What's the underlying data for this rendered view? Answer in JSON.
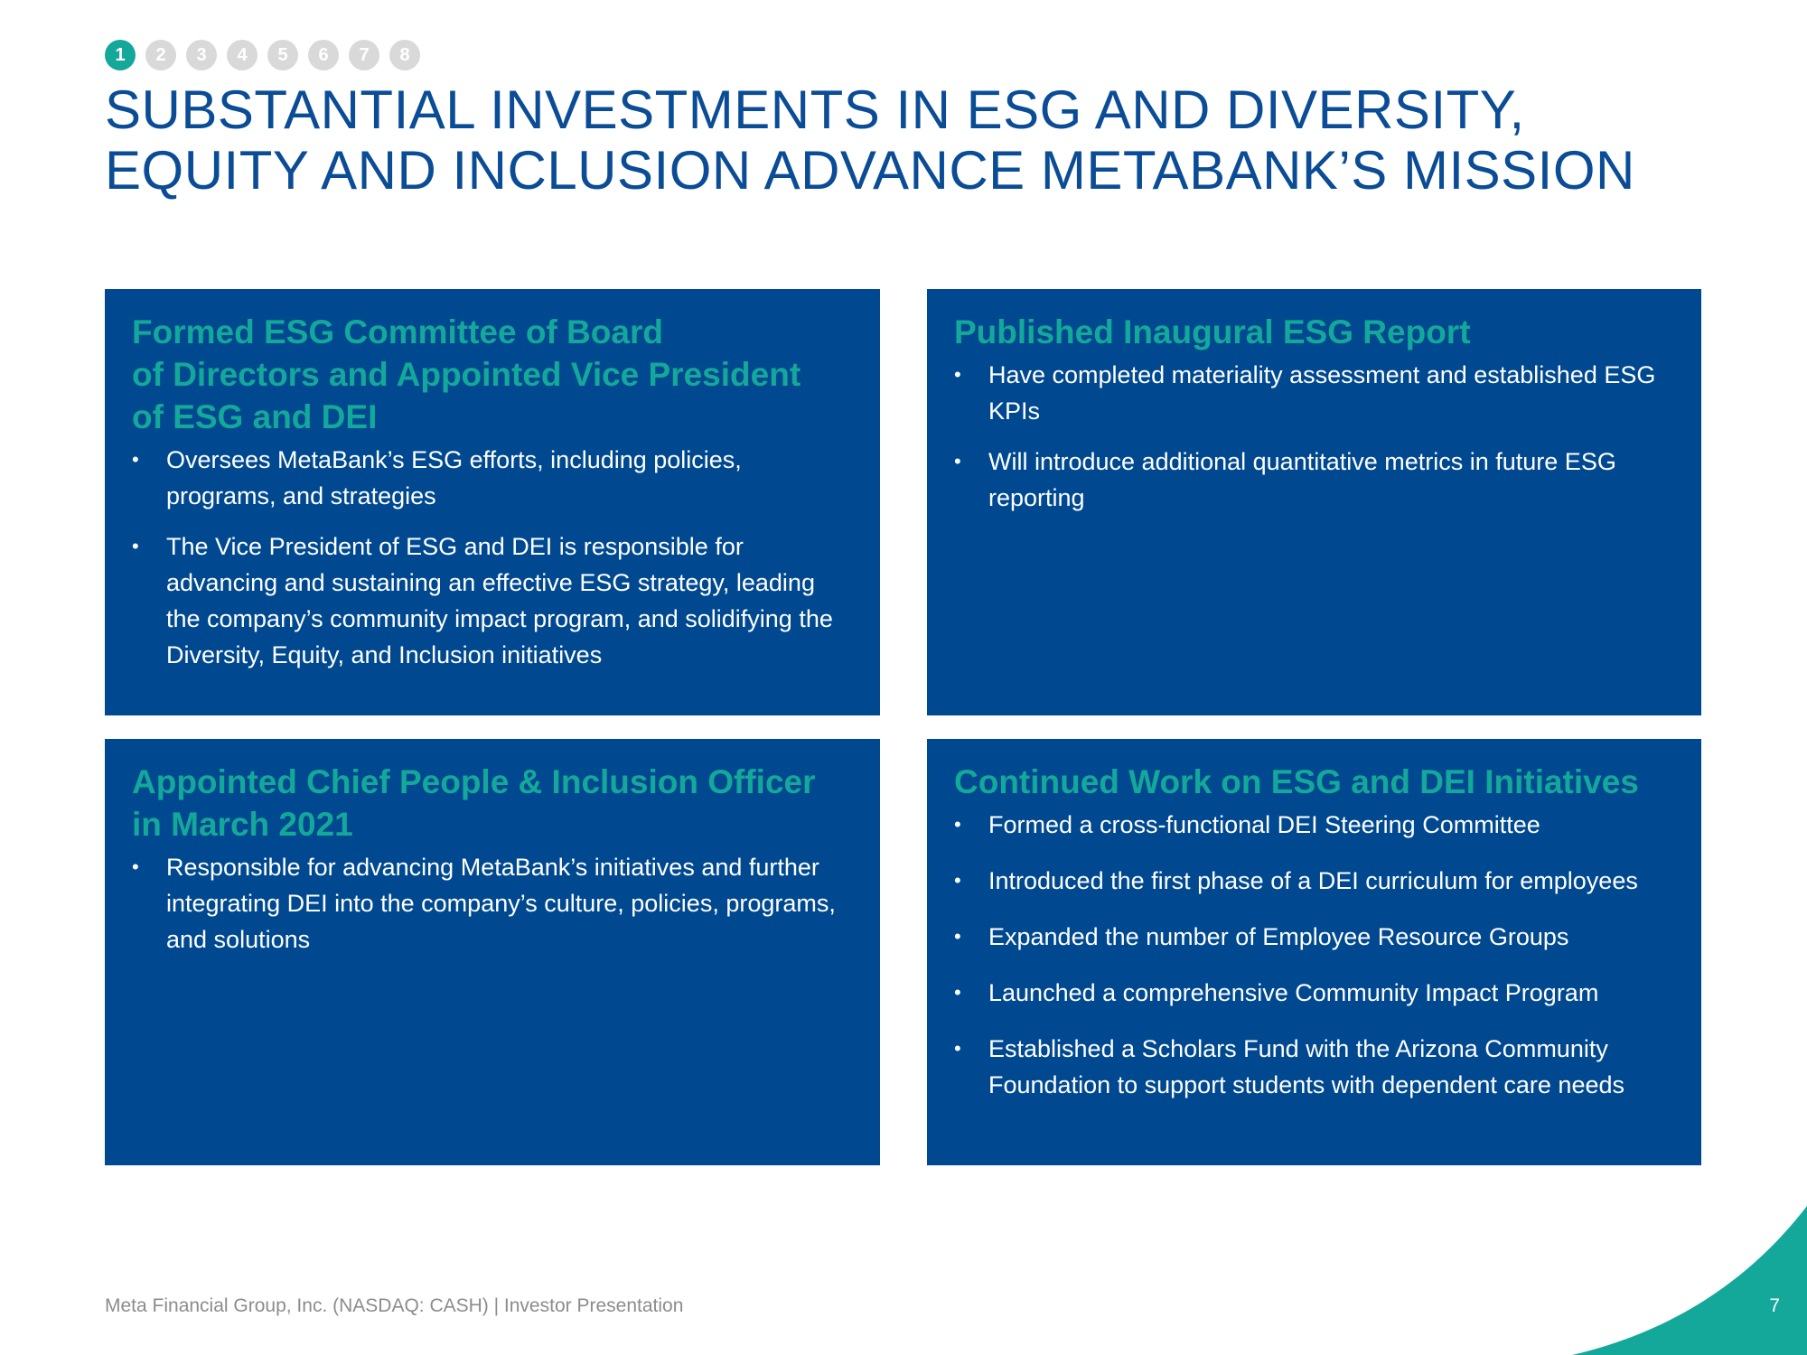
{
  "progress": {
    "steps": [
      "1",
      "2",
      "3",
      "4",
      "5",
      "6",
      "7",
      "8"
    ],
    "active_step": "1",
    "active_color": "#14a89a",
    "inactive_color": "#d9d9d9"
  },
  "title": {
    "line1": "SUBSTANTIAL INVESTMENTS IN ESG AND DIVERSITY,",
    "line2": "EQUITY AND INCLUSION ADVANCE METABANK’S MISSION"
  },
  "colors": {
    "title": "#0a4c96",
    "panel_background": "#004990",
    "panel_heading": "#14a89a",
    "accent_swoosh": "#14a89a"
  },
  "panels": [
    {
      "heading_lines": [
        "Formed ESG Committee of Board",
        "of Directors and Appointed Vice President",
        "of ESG and DEI"
      ],
      "bullets": [
        "Oversees MetaBank’s ESG efforts, including policies, programs, and strategies",
        "The Vice President of ESG and DEI is responsible for advancing and sustaining an effective ESG strategy, leading the company’s community impact program, and solidifying the Diversity, Equity, and Inclusion initiatives"
      ]
    },
    {
      "heading_lines": [
        "Published Inaugural ESG Report"
      ],
      "bullets": [
        "Have completed materiality assessment and established ESG KPIs",
        "Will introduce additional quantitative metrics in future ESG reporting"
      ]
    },
    {
      "heading_lines": [
        "Appointed Chief People & Inclusion Officer",
        "in March 2021"
      ],
      "bullets": [
        "Responsible for advancing MetaBank’s initiatives and further integrating DEI into the company’s culture, policies, programs, and solutions"
      ]
    },
    {
      "heading_lines": [
        "Continued Work on ESG and DEI Initiatives"
      ],
      "bullets": [
        "Formed a cross-functional DEI Steering Committee",
        "Introduced the first phase of a DEI curriculum for employees",
        "Expanded the number of Employee Resource Groups",
        "Launched a comprehensive Community Impact Program",
        "Established a Scholars Fund with the Arizona Community Foundation to support students with dependent care needs"
      ]
    }
  ],
  "bullet_symbol": "•",
  "footer": {
    "text": "Meta Financial Group, Inc. (NASDAQ: CASH) | Investor Presentation",
    "page_number": "7"
  }
}
